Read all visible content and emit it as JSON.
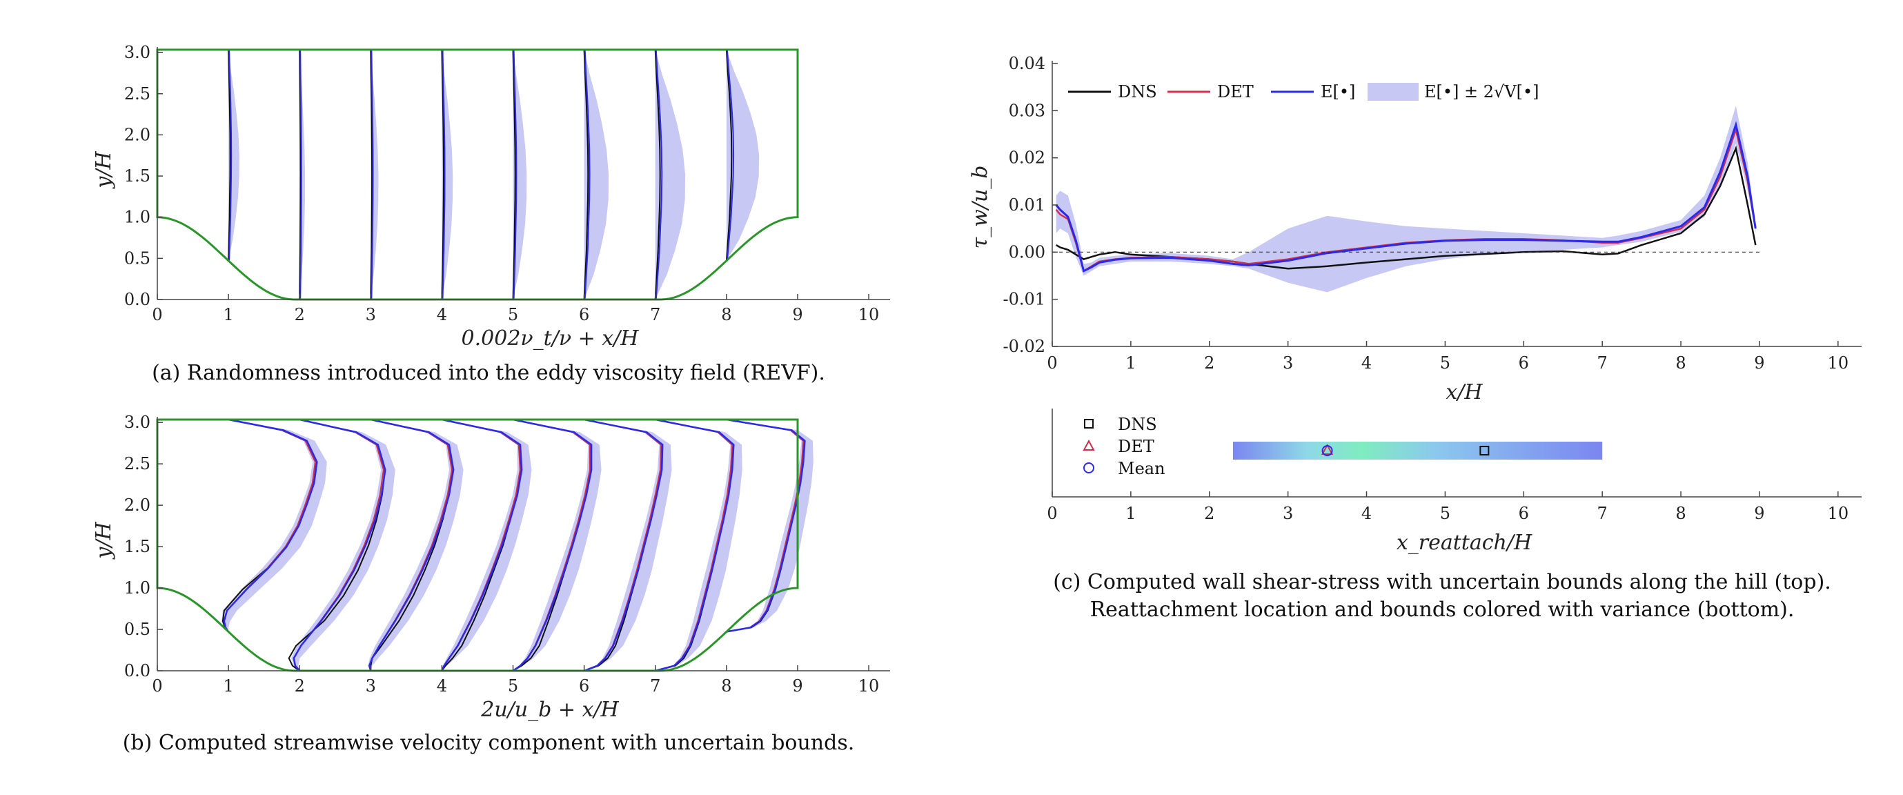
{
  "colors": {
    "dns": "#111111",
    "det": "#d0304a",
    "mean": "#2a2ae8",
    "band": "#c8c8f5",
    "wall": "#2a962a",
    "marker_dns": "#111111",
    "marker_det": "#d0304a",
    "marker_mean": "#2a2ae8"
  },
  "panels": {
    "a": {
      "caption": "(a) Randomness introduced into the eddy viscosity field (REVF).",
      "xlabel": "0.002ν_t/ν + x/H",
      "ylabel": "y/H",
      "xticks": [
        "0",
        "1",
        "2",
        "3",
        "4",
        "5",
        "6",
        "7",
        "8",
        "9",
        "10"
      ],
      "yticks": [
        "0.0",
        "0.5",
        "1.0",
        "1.5",
        "2.0",
        "2.5",
        "3.0"
      ]
    },
    "b": {
      "caption": "(b) Computed streamwise velocity component with uncertain bounds.",
      "xlabel": "2u/u_b + x/H",
      "ylabel": "y/H",
      "xticks": [
        "0",
        "1",
        "2",
        "3",
        "4",
        "5",
        "6",
        "7",
        "8",
        "9",
        "10"
      ],
      "yticks": [
        "0.0",
        "0.5",
        "1.0",
        "1.5",
        "2.0",
        "2.5",
        "3.0"
      ]
    },
    "c_top": {
      "xlabel": "x/H",
      "ylabel": "τ_w/u_b",
      "xticks": [
        "0",
        "1",
        "2",
        "3",
        "4",
        "5",
        "6",
        "7",
        "8",
        "9",
        "10"
      ],
      "yticks": [
        "-0.02",
        "-0.01",
        "0.00",
        "0.01",
        "0.02",
        "0.03",
        "0.04"
      ],
      "legend": [
        "DNS",
        "DET",
        "E[•]",
        "E[•] ± 2√V[•]"
      ]
    },
    "c_bottom": {
      "xlabel": "x_reattach/H",
      "xticks": [
        "0",
        "1",
        "2",
        "3",
        "4",
        "5",
        "6",
        "7",
        "8",
        "9",
        "10"
      ],
      "legend": [
        "DNS",
        "DET",
        "Mean"
      ]
    },
    "c": {
      "caption_line1": "(c) Computed wall shear-stress with uncertain bounds along the hill (top).",
      "caption_line2": "Reattachment location and bounds colored with variance (bottom)."
    }
  },
  "chart_data": [
    {
      "panel": "a",
      "type": "line",
      "title": "",
      "xlim": [
        0,
        10.3
      ],
      "ylim": [
        0,
        3.035
      ],
      "grid": false,
      "profile_stations_x": [
        1,
        2,
        3,
        4,
        5,
        6,
        7,
        8
      ],
      "eta": [
        0.0,
        0.1,
        0.2,
        0.3,
        0.4,
        0.5,
        0.6,
        0.7,
        0.8,
        0.9,
        1.0
      ],
      "mean_offset_shape": [
        0.0,
        0.05,
        0.1,
        0.13,
        0.16,
        0.17,
        0.16,
        0.13,
        0.09,
        0.04,
        0.0
      ],
      "band_halfwidth_shape": [
        0.0,
        0.09,
        0.15,
        0.2,
        0.22,
        0.22,
        0.2,
        0.16,
        0.11,
        0.05,
        0.0
      ],
      "note_amplitude_per_station": [
        0.2,
        0.1,
        0.14,
        0.2,
        0.25,
        0.45,
        0.55,
        0.6
      ]
    },
    {
      "panel": "b",
      "type": "line",
      "xlim": [
        0,
        10.3
      ],
      "ylim": [
        0,
        3.035
      ],
      "grid": false,
      "profile_stations_x": [
        1,
        2,
        3,
        4,
        5,
        6,
        7,
        8
      ],
      "eta": [
        0.0,
        0.02,
        0.05,
        0.1,
        0.2,
        0.3,
        0.4,
        0.5,
        0.6,
        0.7,
        0.8,
        0.9,
        0.95,
        1.0
      ],
      "series": [
        {
          "name": "DNS",
          "profiles_u": [
            [
              0.0,
              -0.05,
              -0.08,
              -0.06,
              0.2,
              0.55,
              0.8,
              0.98,
              1.1,
              1.2,
              1.24,
              1.08,
              0.75,
              0.0
            ],
            [
              0.0,
              -0.1,
              -0.15,
              -0.05,
              0.35,
              0.62,
              0.82,
              0.97,
              1.08,
              1.16,
              1.2,
              1.08,
              0.78,
              0.0
            ],
            [
              0.0,
              0.0,
              0.02,
              0.15,
              0.4,
              0.6,
              0.76,
              0.9,
              1.01,
              1.1,
              1.15,
              1.08,
              0.8,
              0.0
            ],
            [
              0.0,
              0.05,
              0.15,
              0.28,
              0.45,
              0.6,
              0.73,
              0.86,
              0.96,
              1.05,
              1.11,
              1.08,
              0.82,
              0.0
            ],
            [
              0.0,
              0.12,
              0.25,
              0.37,
              0.5,
              0.62,
              0.73,
              0.84,
              0.94,
              1.03,
              1.09,
              1.08,
              0.84,
              0.0
            ],
            [
              0.0,
              0.2,
              0.33,
              0.44,
              0.56,
              0.66,
              0.76,
              0.85,
              0.94,
              1.02,
              1.08,
              1.08,
              0.86,
              0.0
            ],
            [
              0.0,
              0.28,
              0.4,
              0.5,
              0.62,
              0.71,
              0.8,
              0.88,
              0.95,
              1.02,
              1.07,
              1.08,
              0.88,
              0.0
            ],
            [
              0.0,
              0.35,
              0.48,
              0.58,
              0.69,
              0.77,
              0.84,
              0.91,
              0.97,
              1.03,
              1.07,
              1.08,
              0.9,
              0.0
            ]
          ]
        },
        {
          "name": "DET",
          "profiles_u": [
            [
              0.0,
              -0.04,
              -0.06,
              -0.02,
              0.25,
              0.55,
              0.8,
              0.97,
              1.08,
              1.18,
              1.22,
              1.08,
              0.76,
              0.0
            ],
            [
              0.0,
              -0.06,
              -0.08,
              0.02,
              0.3,
              0.55,
              0.75,
              0.91,
              1.04,
              1.13,
              1.18,
              1.08,
              0.78,
              0.0
            ],
            [
              0.0,
              -0.02,
              0.02,
              0.12,
              0.34,
              0.54,
              0.71,
              0.86,
              0.98,
              1.08,
              1.14,
              1.08,
              0.8,
              0.0
            ],
            [
              0.0,
              0.03,
              0.1,
              0.22,
              0.4,
              0.56,
              0.7,
              0.83,
              0.94,
              1.04,
              1.1,
              1.08,
              0.82,
              0.0
            ],
            [
              0.0,
              0.1,
              0.2,
              0.31,
              0.46,
              0.59,
              0.71,
              0.82,
              0.92,
              1.01,
              1.08,
              1.08,
              0.84,
              0.0
            ],
            [
              0.0,
              0.18,
              0.29,
              0.4,
              0.53,
              0.64,
              0.74,
              0.83,
              0.92,
              1.0,
              1.07,
              1.08,
              0.86,
              0.0
            ],
            [
              0.0,
              0.26,
              0.37,
              0.48,
              0.6,
              0.69,
              0.78,
              0.86,
              0.94,
              1.01,
              1.06,
              1.08,
              0.88,
              0.0
            ],
            [
              0.0,
              0.33,
              0.46,
              0.56,
              0.67,
              0.75,
              0.82,
              0.89,
              0.96,
              1.02,
              1.06,
              1.08,
              0.9,
              0.0
            ]
          ]
        }
      ],
      "band_halfwidth": [
        0.0,
        0.03,
        0.06,
        0.1,
        0.13,
        0.14,
        0.14,
        0.13,
        0.12,
        0.11,
        0.1,
        0.08,
        0.06,
        0.0
      ]
    },
    {
      "panel": "c_top",
      "type": "line",
      "xlim": [
        0,
        10.3
      ],
      "ylim": [
        -0.02,
        0.04
      ],
      "grid": false,
      "legend_placement": "top-left",
      "x": [
        0.05,
        0.1,
        0.2,
        0.3,
        0.4,
        0.5,
        0.6,
        0.8,
        1.0,
        1.5,
        2.0,
        2.3,
        2.5,
        3.0,
        3.5,
        4.0,
        4.5,
        5.0,
        5.5,
        6.0,
        6.5,
        7.0,
        7.2,
        7.5,
        8.0,
        8.3,
        8.5,
        8.7,
        8.85,
        8.95
      ],
      "series": [
        {
          "name": "DNS",
          "values": [
            0.0015,
            0.001,
            0.0005,
            -0.0005,
            -0.0015,
            -0.001,
            -0.0005,
            0.0,
            -0.0005,
            -0.001,
            -0.0015,
            -0.002,
            -0.0025,
            -0.0035,
            -0.003,
            -0.0022,
            -0.0015,
            -0.0008,
            -0.0004,
            0.0,
            0.0002,
            -0.0005,
            -0.0003,
            0.0015,
            0.004,
            0.008,
            0.014,
            0.022,
            0.01,
            0.0015
          ]
        },
        {
          "name": "DET",
          "values": [
            0.009,
            0.008,
            0.007,
            0.002,
            -0.004,
            -0.003,
            -0.002,
            -0.0015,
            -0.0012,
            -0.001,
            -0.0015,
            -0.002,
            -0.0025,
            -0.0015,
            0.0,
            0.001,
            0.002,
            0.0025,
            0.0028,
            0.0028,
            0.0025,
            0.002,
            0.002,
            0.003,
            0.005,
            0.009,
            0.016,
            0.026,
            0.015,
            0.005
          ]
        },
        {
          "name": "E[•]",
          "values": [
            0.01,
            0.009,
            0.0075,
            0.0025,
            -0.004,
            -0.0032,
            -0.0022,
            -0.0016,
            -0.0013,
            -0.0012,
            -0.0018,
            -0.0025,
            -0.0028,
            -0.0018,
            -0.0002,
            0.0008,
            0.0018,
            0.0024,
            0.0026,
            0.0026,
            0.0024,
            0.0022,
            0.0022,
            0.0032,
            0.0055,
            0.0095,
            0.017,
            0.027,
            0.016,
            0.005
          ]
        }
      ],
      "band": {
        "name": "E[•] ± 2√V[•]",
        "lower": [
          0.004,
          0.005,
          0.004,
          -0.001,
          -0.005,
          -0.004,
          -0.003,
          -0.0025,
          -0.002,
          -0.002,
          -0.0025,
          -0.003,
          -0.0035,
          -0.0065,
          -0.0085,
          -0.0055,
          -0.003,
          -0.0015,
          -0.0005,
          0.0,
          0.0005,
          0.001,
          0.0015,
          0.0022,
          0.0043,
          0.0075,
          0.014,
          0.023,
          0.013,
          0.004
        ],
        "upper": [
          0.012,
          0.013,
          0.012,
          0.006,
          -0.0025,
          -0.0022,
          -0.0012,
          -0.0008,
          -0.0005,
          -0.0002,
          -0.0008,
          -0.0015,
          0.0,
          0.005,
          0.0077,
          0.0065,
          0.0055,
          0.005,
          0.0045,
          0.004,
          0.0035,
          0.003,
          0.0035,
          0.0045,
          0.0068,
          0.012,
          0.02,
          0.031,
          0.019,
          0.006
        ]
      },
      "zero_line": 0.0
    },
    {
      "panel": "c_bottom",
      "type": "scatter",
      "xlim": [
        0,
        10.3
      ],
      "legend_placement": "top-left",
      "variance_bar_x": [
        2.3,
        7.0
      ],
      "points": [
        {
          "name": "DNS",
          "x": 5.5
        },
        {
          "name": "DET",
          "x": 3.5
        },
        {
          "name": "Mean",
          "x": 3.5
        }
      ]
    }
  ]
}
